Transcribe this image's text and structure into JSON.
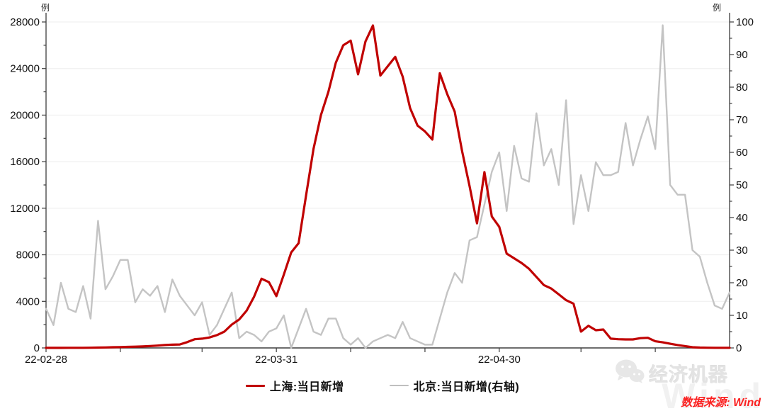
{
  "chart": {
    "left_axis": {
      "unit": "例",
      "min": 0,
      "max": 28000,
      "tick_step": 4000,
      "minor_step": 2000,
      "tick_labels": [
        "0",
        "4000",
        "8000",
        "12000",
        "16000",
        "20000",
        "24000",
        "28000"
      ]
    },
    "right_axis": {
      "unit": "例",
      "min": 0,
      "max": 100,
      "tick_step": 10,
      "minor_step": 5,
      "tick_labels": [
        "0",
        "10",
        "20",
        "30",
        "40",
        "50",
        "60",
        "70",
        "80",
        "90",
        "100"
      ]
    },
    "x_axis": {
      "labels": [
        "22-02-28",
        "22-03-31",
        "22-04-30"
      ],
      "label_day_indices": [
        0,
        31,
        61
      ],
      "tick_day_indices": [
        0,
        10,
        21,
        31,
        41,
        51,
        61,
        72,
        82
      ]
    },
    "legend": [
      {
        "label": "上海:当日新增",
        "color": "#c00000"
      },
      {
        "label": "北京:当日新增(右轴)",
        "color": "#bfbfbf"
      }
    ],
    "colors": {
      "axis": "#3d3d3d",
      "grid": "#ededed",
      "tick_text": "#111111"
    }
  },
  "chart_data": {
    "type": "line",
    "left_ylim": [
      0,
      28000
    ],
    "right_ylim": [
      0,
      100
    ],
    "x": [
      "2022-02-28",
      "2022-03-01",
      "2022-03-02",
      "2022-03-03",
      "2022-03-04",
      "2022-03-05",
      "2022-03-06",
      "2022-03-07",
      "2022-03-08",
      "2022-03-09",
      "2022-03-10",
      "2022-03-11",
      "2022-03-12",
      "2022-03-13",
      "2022-03-14",
      "2022-03-15",
      "2022-03-16",
      "2022-03-17",
      "2022-03-18",
      "2022-03-19",
      "2022-03-20",
      "2022-03-21",
      "2022-03-22",
      "2022-03-23",
      "2022-03-24",
      "2022-03-25",
      "2022-03-26",
      "2022-03-27",
      "2022-03-28",
      "2022-03-29",
      "2022-03-30",
      "2022-03-31",
      "2022-04-01",
      "2022-04-02",
      "2022-04-03",
      "2022-04-04",
      "2022-04-05",
      "2022-04-06",
      "2022-04-07",
      "2022-04-08",
      "2022-04-09",
      "2022-04-10",
      "2022-04-11",
      "2022-04-12",
      "2022-04-13",
      "2022-04-14",
      "2022-04-15",
      "2022-04-16",
      "2022-04-17",
      "2022-04-18",
      "2022-04-19",
      "2022-04-20",
      "2022-04-21",
      "2022-04-22",
      "2022-04-23",
      "2022-04-24",
      "2022-04-25",
      "2022-04-26",
      "2022-04-27",
      "2022-04-28",
      "2022-04-29",
      "2022-04-30",
      "2022-05-01",
      "2022-05-02",
      "2022-05-03",
      "2022-05-04",
      "2022-05-05",
      "2022-05-06",
      "2022-05-07",
      "2022-05-08",
      "2022-05-09",
      "2022-05-10",
      "2022-05-11",
      "2022-05-12",
      "2022-05-13",
      "2022-05-14",
      "2022-05-15",
      "2022-05-16",
      "2022-05-17",
      "2022-05-18",
      "2022-05-19",
      "2022-05-20",
      "2022-05-21",
      "2022-05-22",
      "2022-05-23",
      "2022-05-24",
      "2022-05-25",
      "2022-05-26",
      "2022-05-27",
      "2022-05-28",
      "2022-05-29",
      "2022-05-30",
      "2022-05-31"
    ],
    "series": [
      {
        "name": "上海:当日新增",
        "axis": "left",
        "color": "#c00000",
        "values": [
          5,
          6,
          8,
          10,
          12,
          15,
          20,
          30,
          45,
          60,
          75,
          90,
          110,
          130,
          160,
          200,
          250,
          280,
          300,
          500,
          750,
          800,
          900,
          1100,
          1400,
          2000,
          2450,
          3200,
          4400,
          5950,
          5650,
          4450,
          6300,
          8200,
          9000,
          13100,
          17100,
          20000,
          22000,
          24500,
          26000,
          26400,
          23500,
          26330,
          27700,
          23400,
          24200,
          25000,
          23300,
          20600,
          19100,
          18600,
          17900,
          23600,
          21800,
          20300,
          16900,
          13900,
          10700,
          15100,
          11300,
          10400,
          8100,
          7700,
          7300,
          6800,
          6100,
          5400,
          5100,
          4600,
          4100,
          3800,
          1400,
          1900,
          1520,
          1580,
          800,
          750,
          730,
          730,
          840,
          870,
          570,
          480,
          360,
          250,
          160,
          60,
          30,
          20,
          15,
          10,
          10
        ]
      },
      {
        "name": "北京:当日新增(右轴)",
        "axis": "right",
        "color": "#c4c4c4",
        "values": [
          12,
          7,
          20,
          12,
          11,
          19,
          9,
          39,
          18,
          22,
          27,
          27,
          14,
          18,
          16,
          19,
          11,
          21,
          16,
          13,
          10,
          14,
          4,
          7,
          12,
          17,
          3,
          5,
          4,
          2,
          5,
          6,
          10,
          0,
          6,
          12,
          5,
          4,
          9,
          9,
          3,
          1,
          3,
          0,
          2,
          3,
          4,
          3,
          8,
          3,
          2,
          1,
          1,
          9,
          17,
          23,
          20,
          33,
          34,
          44,
          54,
          60,
          42,
          62,
          52,
          51,
          72,
          56,
          61,
          50,
          76,
          38,
          53,
          42,
          57,
          53,
          53,
          54,
          69,
          56,
          64,
          71,
          61,
          99,
          50,
          47,
          47,
          30,
          28,
          20,
          13,
          12,
          17
        ]
      }
    ]
  },
  "footer": {
    "brand": "经济机器",
    "watermark": "Wind",
    "source_text": "数据来源: Wind",
    "source_color": "#fb2222"
  }
}
